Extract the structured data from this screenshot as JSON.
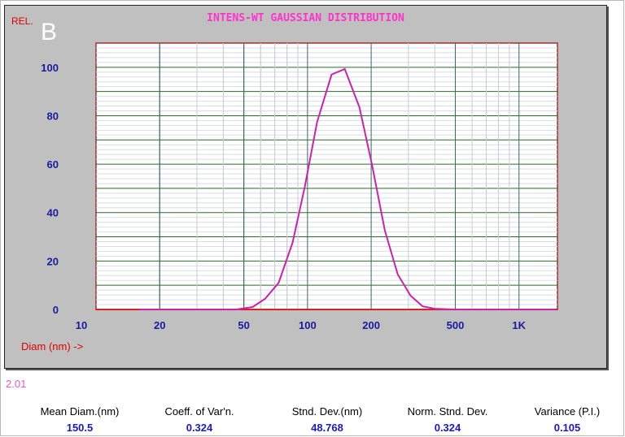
{
  "chart_data": {
    "type": "line",
    "title": "INTENS-WT GAUSSIAN DISTRIBUTION",
    "ylabel": "REL.",
    "xlabel": "Diam (nm) ->",
    "xscale": "log",
    "xlim": [
      10,
      1520
    ],
    "ylim": [
      0,
      110
    ],
    "xticks": [
      {
        "v": 10,
        "label": "10"
      },
      {
        "v": 20,
        "label": "20"
      },
      {
        "v": 50,
        "label": "50"
      },
      {
        "v": 100,
        "label": "100"
      },
      {
        "v": 200,
        "label": "200"
      },
      {
        "v": 500,
        "label": "500"
      },
      {
        "v": 1000,
        "label": "1K"
      }
    ],
    "yticks": [
      0,
      20,
      40,
      60,
      80,
      100
    ],
    "grid": true,
    "series": [
      {
        "name": "intensity",
        "color": "#cc22aa",
        "x": [
          16,
          20,
          35,
          46,
          55,
          63,
          73,
          85,
          97,
          111,
          130,
          150,
          176,
          202,
          232,
          267,
          307,
          350,
          400,
          500,
          1000,
          1500
        ],
        "y": [
          0,
          0,
          0,
          0,
          1,
          4.4,
          11,
          27.6,
          50.5,
          77.4,
          97,
          99.3,
          83.5,
          59.6,
          32.7,
          14.5,
          5.7,
          1.3,
          0.3,
          0,
          0,
          0
        ]
      }
    ]
  },
  "panel_letter": "B",
  "version": "2.01",
  "stats": [
    {
      "label": "Mean Diam.(nm)",
      "value": "150.5"
    },
    {
      "label": "Coeff. of Var'n.",
      "value": "0.324"
    },
    {
      "label": "Stnd. Dev.(nm)",
      "value": "48.768"
    },
    {
      "label": "Norm. Stnd. Dev.",
      "value": "0.324"
    },
    {
      "label": "Variance (P.I.)",
      "value": "0.105"
    }
  ]
}
